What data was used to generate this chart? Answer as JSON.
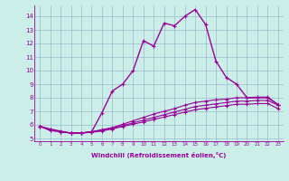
{
  "xlabel": "Windchill (Refroidissement éolien,°C)",
  "bg_color": "#cceee8",
  "line_color": "#990099",
  "grid_color": "#99bbcc",
  "x_min": 0,
  "x_max": 23,
  "y_min": 5,
  "y_max": 14,
  "series": [
    [
      5.9,
      5.6,
      5.5,
      5.4,
      5.4,
      5.5,
      6.9,
      8.5,
      9.0,
      10.0,
      12.2,
      11.8,
      13.5,
      13.3,
      14.0,
      14.5,
      13.4,
      10.7,
      9.5,
      9.0,
      8.0,
      8.0,
      8.0,
      7.5
    ],
    [
      5.9,
      5.7,
      5.55,
      5.4,
      5.4,
      5.5,
      5.65,
      5.8,
      6.05,
      6.3,
      6.55,
      6.8,
      7.0,
      7.2,
      7.45,
      7.65,
      7.75,
      7.85,
      7.9,
      8.0,
      8.0,
      8.05,
      8.05,
      7.5
    ],
    [
      5.9,
      5.65,
      5.5,
      5.4,
      5.4,
      5.5,
      5.6,
      5.75,
      5.95,
      6.15,
      6.35,
      6.55,
      6.75,
      6.95,
      7.15,
      7.35,
      7.45,
      7.55,
      7.65,
      7.75,
      7.75,
      7.8,
      7.8,
      7.45
    ],
    [
      5.9,
      5.6,
      5.5,
      5.4,
      5.4,
      5.45,
      5.55,
      5.7,
      5.88,
      6.05,
      6.22,
      6.4,
      6.58,
      6.76,
      6.94,
      7.12,
      7.22,
      7.32,
      7.42,
      7.52,
      7.52,
      7.57,
      7.57,
      7.2
    ]
  ]
}
